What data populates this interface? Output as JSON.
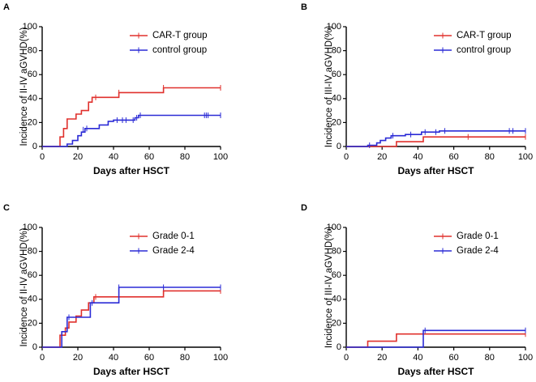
{
  "chart_data": [
    {
      "panel_label": "A",
      "type": "line",
      "title": "",
      "xlabel": "Days after HSCT",
      "ylabel": "Incidence of II-IV aGVHD(%)",
      "xlim": [
        0,
        100
      ],
      "ylim": [
        0,
        100
      ],
      "xticks": [
        "0",
        "20",
        "40",
        "60",
        "80",
        "100"
      ],
      "yticks": [
        "0",
        "20",
        "40",
        "60",
        "80",
        "100"
      ],
      "legend_position": "top-right",
      "series": [
        {
          "name": "CAR-T group",
          "color": "#e0312d",
          "steps": [
            [
              0,
              0
            ],
            [
              10,
              0
            ],
            [
              10,
              8
            ],
            [
              12,
              8
            ],
            [
              12,
              15
            ],
            [
              14,
              15
            ],
            [
              14,
              23
            ],
            [
              19,
              23
            ],
            [
              19,
              27
            ],
            [
              22,
              27
            ],
            [
              22,
              30
            ],
            [
              26,
              30
            ],
            [
              26,
              37
            ],
            [
              28,
              37
            ],
            [
              28,
              41
            ],
            [
              43,
              41
            ],
            [
              43,
              45
            ],
            [
              68,
              45
            ],
            [
              68,
              49
            ],
            [
              100,
              49
            ]
          ],
          "censored": [
            [
              30,
              41
            ],
            [
              43,
              45
            ],
            [
              68,
              49
            ],
            [
              100,
              49
            ]
          ]
        },
        {
          "name": "control group",
          "color": "#2b2bd6",
          "steps": [
            [
              0,
              0
            ],
            [
              14,
              0
            ],
            [
              14,
              2
            ],
            [
              17,
              2
            ],
            [
              17,
              5
            ],
            [
              20,
              5
            ],
            [
              20,
              9
            ],
            [
              22,
              9
            ],
            [
              22,
              12
            ],
            [
              24,
              12
            ],
            [
              24,
              15
            ],
            [
              32,
              15
            ],
            [
              32,
              18
            ],
            [
              37,
              18
            ],
            [
              37,
              21
            ],
            [
              40,
              21
            ],
            [
              40,
              22
            ],
            [
              52,
              22
            ],
            [
              52,
              24
            ],
            [
              54,
              24
            ],
            [
              54,
              26
            ],
            [
              100,
              26
            ]
          ],
          "censored": [
            [
              23,
              14
            ],
            [
              25,
              15
            ],
            [
              42,
              22
            ],
            [
              45,
              22
            ],
            [
              47,
              22
            ],
            [
              51,
              22
            ],
            [
              53,
              24
            ],
            [
              55,
              26
            ],
            [
              91,
              26
            ],
            [
              92,
              26
            ],
            [
              93,
              26
            ],
            [
              100,
              26
            ]
          ]
        }
      ]
    },
    {
      "panel_label": "B",
      "type": "line",
      "title": "",
      "xlabel": "Days after HSCT",
      "ylabel": "Incidence of III-IV aGVHD(%)",
      "xlim": [
        0,
        100
      ],
      "ylim": [
        0,
        100
      ],
      "xticks": [
        "0",
        "20",
        "40",
        "60",
        "80",
        "100"
      ],
      "yticks": [
        "0",
        "20",
        "40",
        "60",
        "80",
        "100"
      ],
      "legend_position": "top-right",
      "series": [
        {
          "name": "CAR-T group",
          "color": "#e0312d",
          "steps": [
            [
              0,
              0
            ],
            [
              28,
              0
            ],
            [
              28,
              4
            ],
            [
              43,
              4
            ],
            [
              43,
              8
            ],
            [
              100,
              8
            ]
          ],
          "censored": [
            [
              68,
              8
            ],
            [
              100,
              8
            ]
          ]
        },
        {
          "name": "control group",
          "color": "#2b2bd6",
          "steps": [
            [
              0,
              0
            ],
            [
              12,
              0
            ],
            [
              12,
              1
            ],
            [
              17,
              1
            ],
            [
              17,
              3
            ],
            [
              19,
              3
            ],
            [
              19,
              5
            ],
            [
              22,
              5
            ],
            [
              22,
              7
            ],
            [
              25,
              7
            ],
            [
              25,
              9
            ],
            [
              33,
              9
            ],
            [
              33,
              10
            ],
            [
              42,
              10
            ],
            [
              42,
              12
            ],
            [
              52,
              12
            ],
            [
              52,
              13
            ],
            [
              100,
              13
            ]
          ],
          "censored": [
            [
              13,
              1
            ],
            [
              26,
              9
            ],
            [
              36,
              10
            ],
            [
              44,
              12
            ],
            [
              50,
              12
            ],
            [
              55,
              13
            ],
            [
              91,
              13
            ],
            [
              93,
              13
            ],
            [
              100,
              13
            ]
          ]
        }
      ]
    },
    {
      "panel_label": "C",
      "type": "line",
      "title": "",
      "xlabel": "Days after HSCT",
      "ylabel": "Incidence of II-IV aGVHD(%)",
      "xlim": [
        0,
        100
      ],
      "ylim": [
        0,
        100
      ],
      "xticks": [
        "0",
        "20",
        "40",
        "60",
        "80",
        "100"
      ],
      "yticks": [
        "0",
        "20",
        "40",
        "60",
        "80",
        "100"
      ],
      "legend_position": "top-right",
      "series": [
        {
          "name": "Grade 0-1",
          "color": "#e0312d",
          "steps": [
            [
              0,
              0
            ],
            [
              10,
              0
            ],
            [
              10,
              10
            ],
            [
              13,
              10
            ],
            [
              13,
              16
            ],
            [
              15,
              16
            ],
            [
              15,
              21
            ],
            [
              19,
              21
            ],
            [
              19,
              26
            ],
            [
              22,
              26
            ],
            [
              22,
              31
            ],
            [
              26,
              31
            ],
            [
              26,
              37
            ],
            [
              29,
              37
            ],
            [
              29,
              42
            ],
            [
              68,
              42
            ],
            [
              68,
              47
            ],
            [
              100,
              47
            ]
          ],
          "censored": [
            [
              30,
              42
            ],
            [
              68,
              47
            ],
            [
              100,
              47
            ]
          ]
        },
        {
          "name": "Grade 2-4",
          "color": "#2b2bd6",
          "steps": [
            [
              0,
              0
            ],
            [
              11,
              0
            ],
            [
              11,
              13
            ],
            [
              14,
              13
            ],
            [
              14,
              25
            ],
            [
              19,
              25
            ],
            [
              19,
              25
            ],
            [
              27,
              25
            ],
            [
              27,
              37
            ],
            [
              43,
              37
            ],
            [
              43,
              50
            ],
            [
              100,
              50
            ]
          ],
          "censored": [
            [
              15,
              25
            ],
            [
              28,
              37
            ],
            [
              43,
              50
            ],
            [
              68,
              50
            ],
            [
              100,
              50
            ]
          ]
        }
      ]
    },
    {
      "panel_label": "D",
      "type": "line",
      "title": "",
      "xlabel": "Days after HSCT",
      "ylabel": "Incidence of III-IV aGVHD(%)",
      "xlim": [
        0,
        100
      ],
      "ylim": [
        0,
        100
      ],
      "xticks": [
        "0",
        "20",
        "40",
        "60",
        "80",
        "100"
      ],
      "yticks": [
        "0",
        "20",
        "40",
        "60",
        "80",
        "100"
      ],
      "legend_position": "top-right",
      "series": [
        {
          "name": "Grade 0-1",
          "color": "#e0312d",
          "steps": [
            [
              0,
              0
            ],
            [
              12,
              0
            ],
            [
              12,
              5
            ],
            [
              28,
              5
            ],
            [
              28,
              11
            ],
            [
              100,
              11
            ]
          ],
          "censored": [
            [
              100,
              11
            ]
          ]
        },
        {
          "name": "Grade 2-4",
          "color": "#2b2bd6",
          "steps": [
            [
              0,
              0
            ],
            [
              43,
              0
            ],
            [
              43,
              14
            ],
            [
              100,
              14
            ]
          ],
          "censored": [
            [
              44,
              14
            ],
            [
              100,
              14
            ]
          ]
        }
      ]
    }
  ]
}
